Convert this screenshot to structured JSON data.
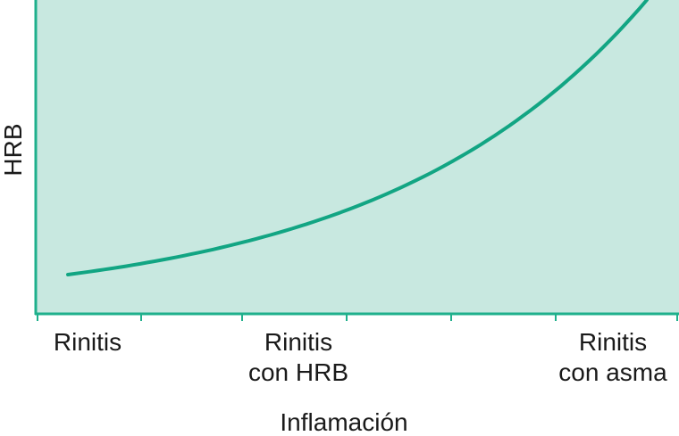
{
  "chart_data": {
    "type": "line",
    "xlabel": "Inflamación",
    "ylabel": "HRB",
    "x_tick_labels": [
      {
        "lines": [
          "Rinitis"
        ]
      },
      {
        "lines": [
          "Rinitis",
          "con HRB"
        ]
      },
      {
        "lines": [
          "Rinitis",
          "con asma"
        ]
      }
    ],
    "curve": {
      "growth": "exponential",
      "start": [
        0.05,
        0.125
      ],
      "end": [
        0.95,
        1.0
      ]
    },
    "grid": false,
    "colors": {
      "plot_background": "#c8e8e0",
      "axis": "#1fb08c",
      "curve": "#12a583",
      "text": "#1a1a1a"
    }
  }
}
